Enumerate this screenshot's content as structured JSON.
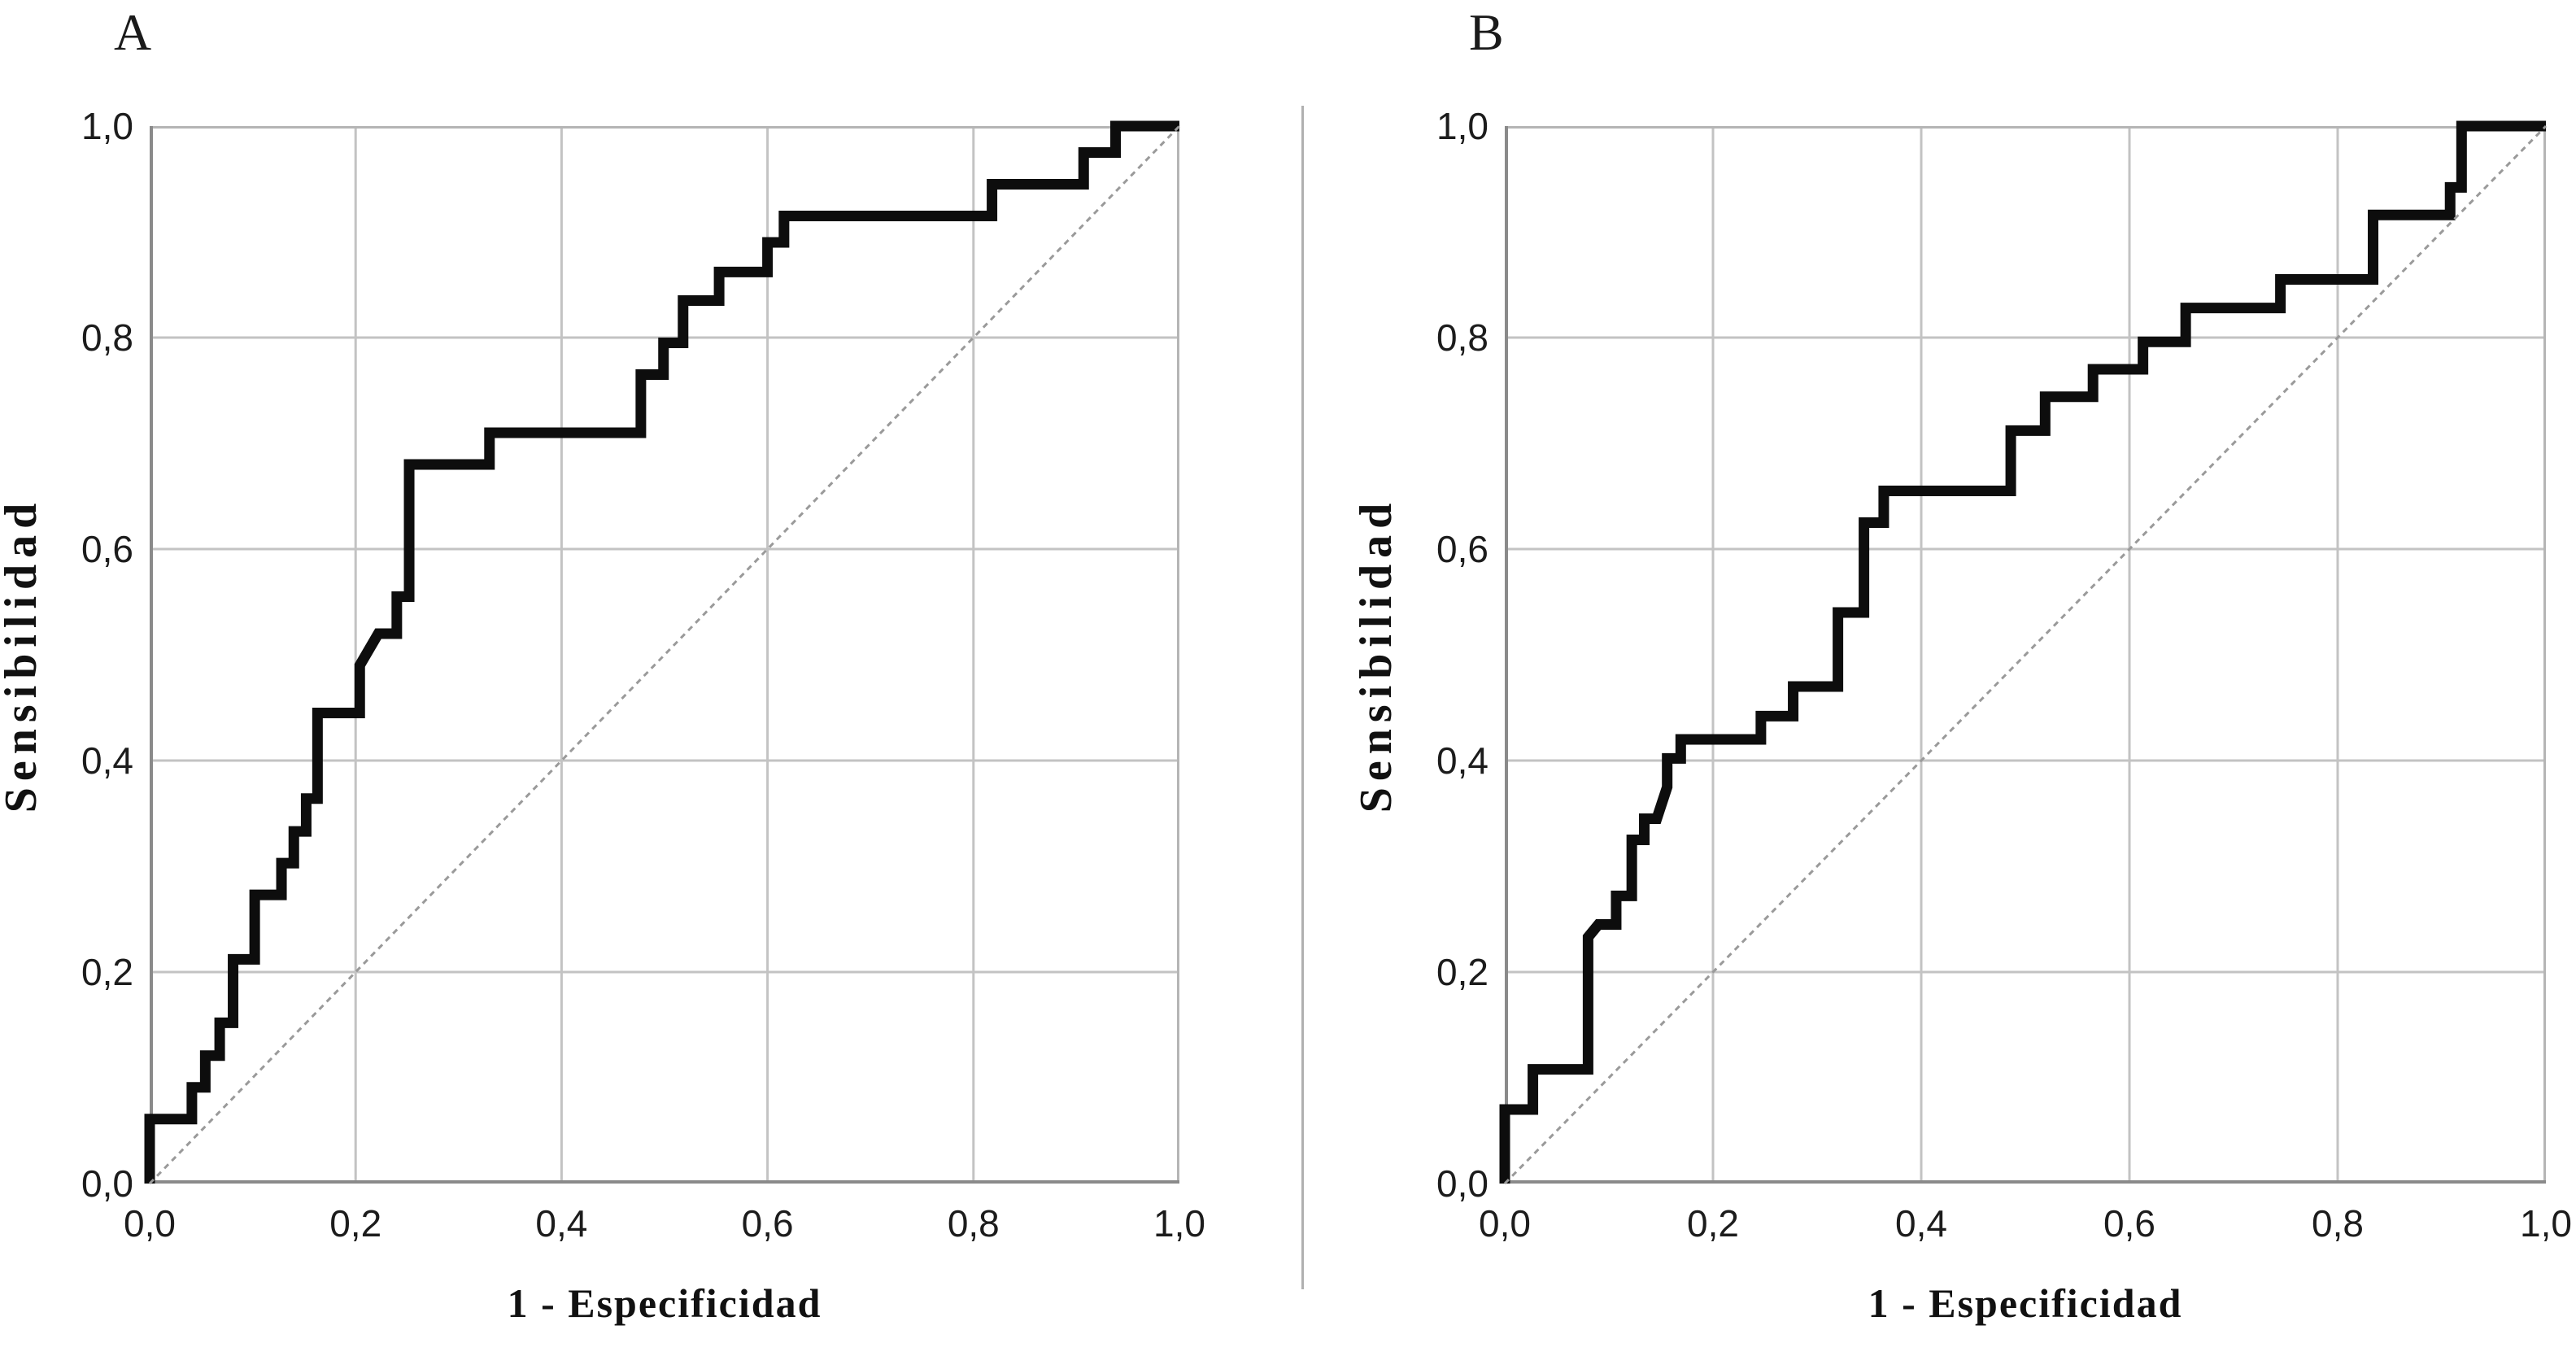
{
  "figure": {
    "background": "#ffffff"
  },
  "colors": {
    "curve": "#0d0d0d",
    "reference_line": "#9a9a9a",
    "grid": "#c3c3c3",
    "border": "#b5b5b5",
    "axis": "#8a8a8a",
    "tick_text": "#1c1c1c",
    "title_text": "#111111",
    "divider": "#b0b0b0"
  },
  "chart_data": [
    {
      "type": "line",
      "panel_label": "A",
      "xlabel": "1 - Especificidad",
      "ylabel": "Sensibilidad",
      "xlim": [
        0,
        1
      ],
      "ylim": [
        0,
        1
      ],
      "grid": true,
      "tick_values": [
        0,
        0.2,
        0.4,
        0.6,
        0.8,
        1.0
      ],
      "x_tick_labels": [
        "0,0",
        "0,2",
        "0,4",
        "0,6",
        "0,8",
        "1,0"
      ],
      "y_tick_labels": [
        "0,0",
        "0,2",
        "0,4",
        "0,6",
        "0,8",
        "1,0"
      ],
      "series": [
        {
          "name": "roc-curve",
          "style": "solid-step",
          "points": [
            [
              0,
              0
            ],
            [
              0,
              0.061
            ],
            [
              0.041,
              0.061
            ],
            [
              0.041,
              0.091
            ],
            [
              0.054,
              0.091
            ],
            [
              0.054,
              0.121
            ],
            [
              0.068,
              0.121
            ],
            [
              0.068,
              0.152
            ],
            [
              0.081,
              0.152
            ],
            [
              0.081,
              0.212
            ],
            [
              0.102,
              0.212
            ],
            [
              0.102,
              0.273
            ],
            [
              0.128,
              0.273
            ],
            [
              0.128,
              0.303
            ],
            [
              0.14,
              0.303
            ],
            [
              0.14,
              0.333
            ],
            [
              0.152,
              0.333
            ],
            [
              0.152,
              0.364
            ],
            [
              0.163,
              0.364
            ],
            [
              0.163,
              0.445
            ],
            [
              0.204,
              0.445
            ],
            [
              0.204,
              0.49
            ],
            [
              0.222,
              0.52
            ],
            [
              0.24,
              0.52
            ],
            [
              0.24,
              0.555
            ],
            [
              0.252,
              0.555
            ],
            [
              0.252,
              0.68
            ],
            [
              0.33,
              0.68
            ],
            [
              0.33,
              0.71
            ],
            [
              0.477,
              0.71
            ],
            [
              0.477,
              0.765
            ],
            [
              0.499,
              0.765
            ],
            [
              0.499,
              0.795
            ],
            [
              0.518,
              0.795
            ],
            [
              0.518,
              0.835
            ],
            [
              0.553,
              0.835
            ],
            [
              0.553,
              0.862
            ],
            [
              0.6,
              0.862
            ],
            [
              0.6,
              0.89
            ],
            [
              0.616,
              0.89
            ],
            [
              0.616,
              0.915
            ],
            [
              0.818,
              0.915
            ],
            [
              0.818,
              0.945
            ],
            [
              0.907,
              0.945
            ],
            [
              0.907,
              0.975
            ],
            [
              0.938,
              0.975
            ],
            [
              0.938,
              1
            ],
            [
              1,
              1
            ]
          ]
        },
        {
          "name": "reference-diagonal",
          "style": "dashed",
          "points": [
            [
              0,
              0
            ],
            [
              1,
              1
            ]
          ]
        }
      ]
    },
    {
      "type": "line",
      "panel_label": "B",
      "xlabel": "1 - Especificidad",
      "ylabel": "Sensibilidad",
      "xlim": [
        0,
        1
      ],
      "ylim": [
        0,
        1
      ],
      "grid": true,
      "tick_values": [
        0,
        0.2,
        0.4,
        0.6,
        0.8,
        1.0
      ],
      "x_tick_labels": [
        "0,0",
        "0,2",
        "0,4",
        "0,6",
        "0,8",
        "1,0"
      ],
      "y_tick_labels": [
        "0,0",
        "0,2",
        "0,4",
        "0,6",
        "0,8",
        "1,0"
      ],
      "series": [
        {
          "name": "roc-curve",
          "style": "solid-step",
          "points": [
            [
              0,
              0
            ],
            [
              0,
              0.07
            ],
            [
              0.027,
              0.07
            ],
            [
              0.027,
              0.108
            ],
            [
              0.08,
              0.108
            ],
            [
              0.08,
              0.233
            ],
            [
              0.09,
              0.245
            ],
            [
              0.107,
              0.245
            ],
            [
              0.107,
              0.272
            ],
            [
              0.122,
              0.272
            ],
            [
              0.122,
              0.325
            ],
            [
              0.134,
              0.325
            ],
            [
              0.134,
              0.345
            ],
            [
              0.146,
              0.345
            ],
            [
              0.156,
              0.375
            ],
            [
              0.156,
              0.402
            ],
            [
              0.169,
              0.402
            ],
            [
              0.169,
              0.42
            ],
            [
              0.246,
              0.42
            ],
            [
              0.246,
              0.442
            ],
            [
              0.277,
              0.442
            ],
            [
              0.277,
              0.47
            ],
            [
              0.32,
              0.47
            ],
            [
              0.32,
              0.54
            ],
            [
              0.345,
              0.54
            ],
            [
              0.345,
              0.625
            ],
            [
              0.364,
              0.625
            ],
            [
              0.364,
              0.655
            ],
            [
              0.486,
              0.655
            ],
            [
              0.486,
              0.712
            ],
            [
              0.519,
              0.712
            ],
            [
              0.519,
              0.744
            ],
            [
              0.565,
              0.744
            ],
            [
              0.565,
              0.77
            ],
            [
              0.613,
              0.77
            ],
            [
              0.613,
              0.796
            ],
            [
              0.654,
              0.796
            ],
            [
              0.654,
              0.828
            ],
            [
              0.745,
              0.828
            ],
            [
              0.745,
              0.855
            ],
            [
              0.834,
              0.855
            ],
            [
              0.834,
              0.916
            ],
            [
              0.908,
              0.916
            ],
            [
              0.908,
              0.942
            ],
            [
              0.919,
              0.942
            ],
            [
              0.919,
              1
            ],
            [
              1,
              1
            ]
          ]
        },
        {
          "name": "reference-diagonal",
          "style": "dashed",
          "points": [
            [
              0,
              0
            ],
            [
              1,
              1
            ]
          ]
        }
      ]
    }
  ]
}
